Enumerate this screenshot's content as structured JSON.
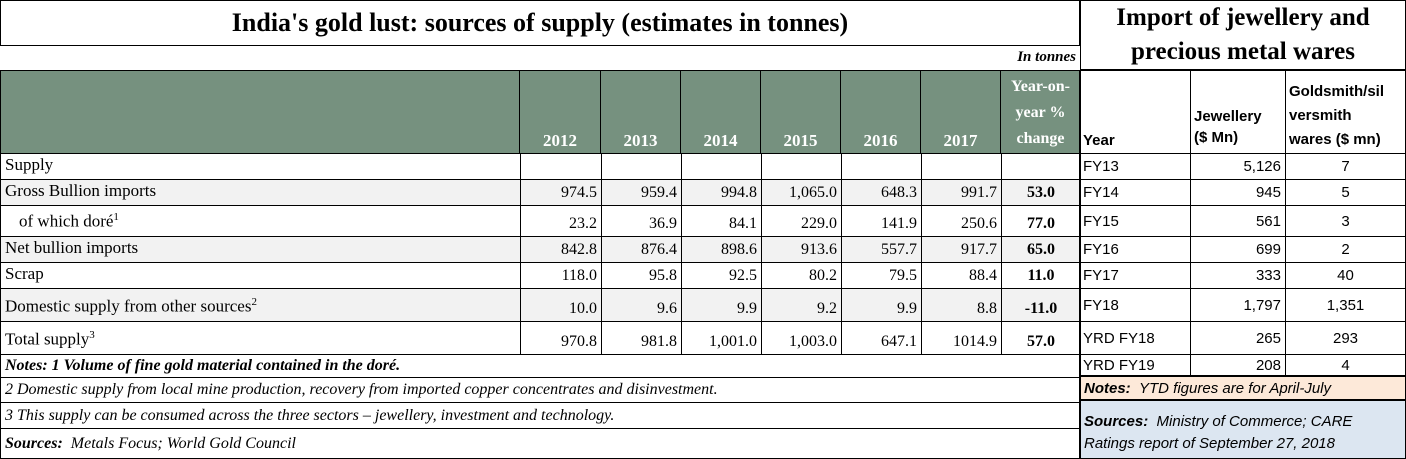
{
  "left": {
    "title": "India's gold lust: sources of supply (estimates in tonnes)",
    "unit_note": "In tonnes",
    "years": [
      "2012",
      "2013",
      "2014",
      "2015",
      "2016",
      "2017"
    ],
    "yoy_header": [
      "Year-on-",
      "year %",
      "change"
    ],
    "rows": [
      {
        "label": "Supply",
        "sup": "",
        "indent": false,
        "values": [
          "",
          "",
          "",
          "",
          "",
          ""
        ],
        "yoy": ""
      },
      {
        "label": "Gross Bullion imports",
        "sup": "",
        "indent": false,
        "values": [
          "974.5",
          "959.4",
          "994.8",
          "1,065.0",
          "648.3",
          "991.7"
        ],
        "yoy": "53.0"
      },
      {
        "label": "of which doré",
        "sup": "1",
        "indent": true,
        "values": [
          "23.2",
          "36.9",
          "84.1",
          "229.0",
          "141.9",
          "250.6"
        ],
        "yoy": "77.0"
      },
      {
        "label": "Net bullion imports",
        "sup": "",
        "indent": false,
        "values": [
          "842.8",
          "876.4",
          "898.6",
          "913.6",
          "557.7",
          "917.7"
        ],
        "yoy": "65.0"
      },
      {
        "label": "Scrap",
        "sup": "",
        "indent": false,
        "values": [
          "118.0",
          "95.8",
          "92.5",
          "80.2",
          "79.5",
          "88.4"
        ],
        "yoy": "11.0"
      },
      {
        "label": "Domestic supply from other sources",
        "sup": "2",
        "indent": false,
        "values": [
          "10.0",
          "9.6",
          "9.9",
          "9.2",
          "9.9",
          "8.8"
        ],
        "yoy": "-11.0"
      },
      {
        "label": "Total supply",
        "sup": "3",
        "indent": false,
        "values": [
          "970.8",
          "981.8",
          "1,001.0",
          "1,003.0",
          "647.1",
          "1014.9"
        ],
        "yoy": "57.0"
      }
    ],
    "notes": [
      "Notes: 1 Volume of fine gold material contained in the doré.",
      "2 Domestic supply from local mine production, recovery from imported copper concentrates and disinvestment.",
      "3 This supply can be consumed across the three sectors – jewellery, investment and technology."
    ],
    "sources_label": "Sources:",
    "sources_text": "Metals Focus; World Gold Council"
  },
  "right": {
    "title_line1": "Import of jewellery and",
    "title_line2": "precious metal wares",
    "col_year": "Year",
    "col_jewellery": [
      "Jewellery",
      "($ Mn)"
    ],
    "col_goldsmith": [
      "Goldsmith/sil",
      "versmith",
      "wares ($ mn)"
    ],
    "rows": [
      {
        "year": "FY13",
        "jewellery": "5,126",
        "goldsmith": "7"
      },
      {
        "year": "FY14",
        "jewellery": "945",
        "goldsmith": "5"
      },
      {
        "year": "FY15",
        "jewellery": "561",
        "goldsmith": "3"
      },
      {
        "year": "FY16",
        "jewellery": "699",
        "goldsmith": "2"
      },
      {
        "year": "FY17",
        "jewellery": "333",
        "goldsmith": "40"
      },
      {
        "year": "FY18",
        "jewellery": "1,797",
        "goldsmith": "1,351"
      },
      {
        "year": "YRD FY18",
        "jewellery": "265",
        "goldsmith": "293"
      },
      {
        "year": "YRD FY19",
        "jewellery": "208",
        "goldsmith": "4"
      }
    ],
    "notes_label": "Notes:",
    "notes_text": "YTD figures are for April-July",
    "sources_label": "Sources:",
    "sources_line1": "Ministry of Commerce; CARE",
    "sources_line2": "Ratings report of September 27, 2018"
  },
  "colors": {
    "header_bg": "#76917f",
    "alt_row": "#f2f2f2",
    "notes_bg": "#fde9d9",
    "sources_bg": "#dce6f1"
  }
}
